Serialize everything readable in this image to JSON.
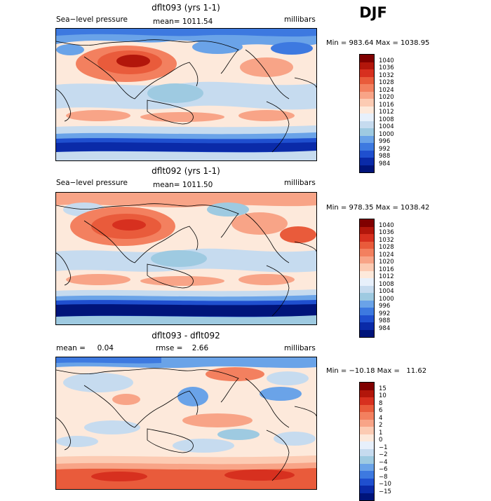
{
  "season": "DJF",
  "panels": [
    {
      "title": "dflt093 (yrs 1-1)",
      "left_label": "Sea−level pressure",
      "center_label": "mean= 1011.54",
      "right_label": "millibars",
      "minmax": "Min = 983.64 Max = 1038.95",
      "colorbar": {
        "labels": [
          "1040",
          "1036",
          "1032",
          "1028",
          "1024",
          "1020",
          "1016",
          "1012",
          "1008",
          "1004",
          "1000",
          "996",
          "992",
          "988",
          "984"
        ],
        "colors": [
          "#800000",
          "#b2160b",
          "#d7301f",
          "#e95b3b",
          "#f3805f",
          "#f8a487",
          "#fccbb3",
          "#fde9db",
          "#e7f0fb",
          "#c6dbef",
          "#9ecae1",
          "#6aa3e8",
          "#3d79e0",
          "#1f4fcf",
          "#0a2aa8",
          "#00147a"
        ]
      }
    },
    {
      "title": "dflt092 (yrs 1-1)",
      "left_label": "Sea−level pressure",
      "center_label": "mean= 1011.50",
      "right_label": "millibars",
      "minmax": "Min = 978.35 Max = 1038.42",
      "colorbar": {
        "labels": [
          "1040",
          "1036",
          "1032",
          "1028",
          "1024",
          "1020",
          "1016",
          "1012",
          "1008",
          "1004",
          "1000",
          "996",
          "992",
          "988",
          "984"
        ],
        "colors": [
          "#800000",
          "#b2160b",
          "#d7301f",
          "#e95b3b",
          "#f3805f",
          "#f8a487",
          "#fccbb3",
          "#fde9db",
          "#e7f0fb",
          "#c6dbef",
          "#9ecae1",
          "#6aa3e8",
          "#3d79e0",
          "#1f4fcf",
          "#0a2aa8",
          "#00147a"
        ]
      }
    },
    {
      "title": "dflt093 - dflt092",
      "left_label": "mean =     0.04",
      "center_label": "rmse =    2.66",
      "right_label": "millibars",
      "minmax": "Min = −10.18 Max =   11.62",
      "colorbar": {
        "labels": [
          "15",
          "10",
          "8",
          "6",
          "4",
          "2",
          "1",
          "0",
          "−1",
          "−2",
          "−4",
          "−6",
          "−8",
          "−10",
          "−15"
        ],
        "colors": [
          "#800000",
          "#b2160b",
          "#d7301f",
          "#e95b3b",
          "#f3805f",
          "#f8a487",
          "#fccbb3",
          "#fde9db",
          "#e7f0fb",
          "#c6dbef",
          "#9ecae1",
          "#6aa3e8",
          "#3d79e0",
          "#1f4fcf",
          "#0a2aa8",
          "#00147a"
        ]
      }
    }
  ]
}
